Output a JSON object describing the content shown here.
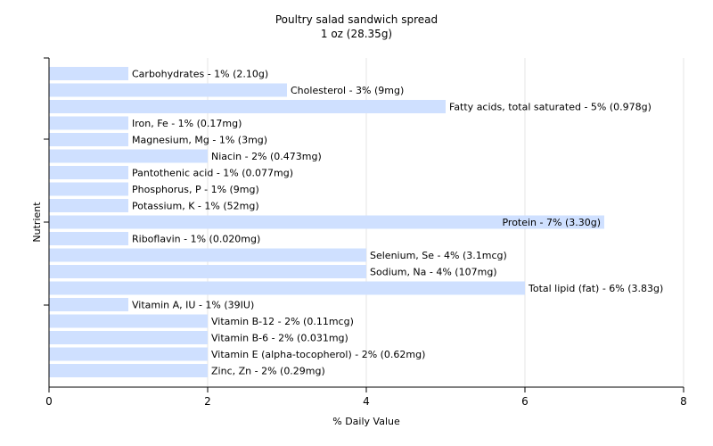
{
  "chart_data": {
    "type": "bar",
    "orientation": "horizontal",
    "title": "Poultry salad sandwich spread",
    "subtitle": "1 oz (28.35g)",
    "xlabel": "% Daily Value",
    "ylabel": "Nutrient",
    "xlim": [
      0,
      8
    ],
    "xticks": [
      "0",
      "2",
      "4",
      "6",
      "8"
    ],
    "grid": true,
    "bar_color": "#cfe0ff",
    "categories": [
      "Carbohydrates",
      "Cholesterol",
      "Fatty acids, total saturated",
      "Iron, Fe",
      "Magnesium, Mg",
      "Niacin",
      "Pantothenic acid",
      "Phosphorus, P",
      "Potassium, K",
      "Protein",
      "Riboflavin",
      "Selenium, Se",
      "Sodium, Na",
      "Total lipid (fat)",
      "Vitamin A, IU",
      "Vitamin B-12",
      "Vitamin B-6",
      "Vitamin E (alpha-tocopherol)",
      "Zinc, Zn"
    ],
    "values": [
      1,
      3,
      5,
      1,
      1,
      2,
      1,
      1,
      1,
      7,
      1,
      4,
      4,
      6,
      1,
      2,
      2,
      2,
      2
    ],
    "labels": [
      "Carbohydrates - 1% (2.10g)",
      "Cholesterol - 3% (9mg)",
      "Fatty acids, total saturated - 5% (0.978g)",
      "Iron, Fe - 1% (0.17mg)",
      "Magnesium, Mg - 1% (3mg)",
      "Niacin - 2% (0.473mg)",
      "Pantothenic acid - 1% (0.077mg)",
      "Phosphorus, P - 1% (9mg)",
      "Potassium, K - 1% (52mg)",
      "Protein - 7% (3.30g)",
      "Riboflavin - 1% (0.020mg)",
      "Selenium, Se - 4% (3.1mcg)",
      "Sodium, Na - 4% (107mg)",
      "Total lipid (fat) - 6% (3.83g)",
      "Vitamin A, IU - 1% (39IU)",
      "Vitamin B-12 - 2% (0.11mcg)",
      "Vitamin B-6 - 2% (0.031mg)",
      "Vitamin E (alpha-tocopherol) - 2% (0.62mg)",
      "Zinc, Zn - 2% (0.29mg)"
    ]
  }
}
